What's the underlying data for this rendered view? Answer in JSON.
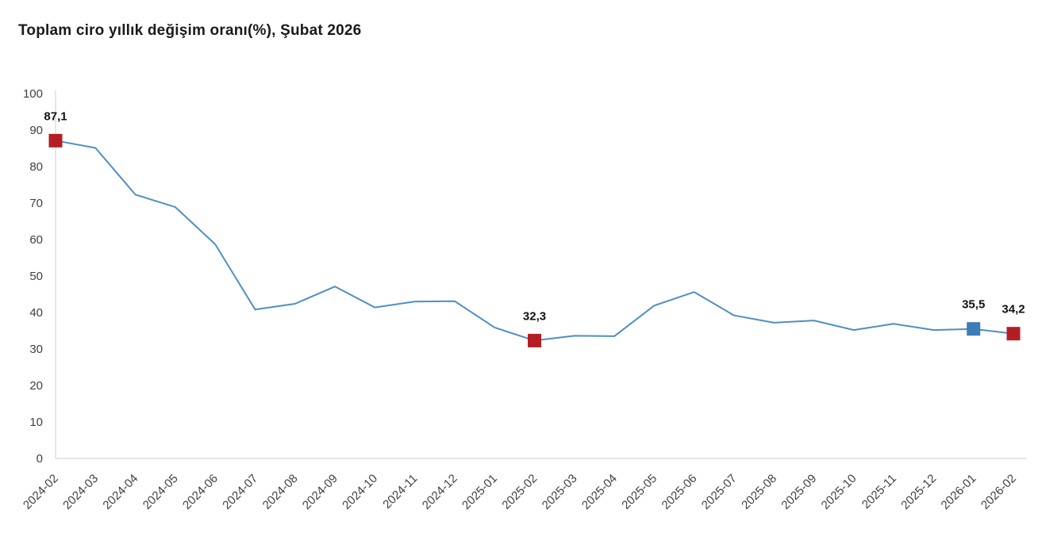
{
  "title": "Toplam ciro yıllık değişim oranı(%), Şubat 2026",
  "chart_data": {
    "type": "line",
    "title": "Toplam ciro yıllık değişim oranı(%), Şubat 2026",
    "categories": [
      "2024-02",
      "2024-03",
      "2024-04",
      "2024-05",
      "2024-06",
      "2024-07",
      "2024-08",
      "2024-09",
      "2024-10",
      "2024-11",
      "2024-12",
      "2025-01",
      "2025-02",
      "2025-03",
      "2025-04",
      "2025-05",
      "2025-06",
      "2025-07",
      "2025-08",
      "2025-09",
      "2025-10",
      "2025-11",
      "2025-12",
      "2026-01",
      "2026-02"
    ],
    "series": [
      {
        "name": "Toplam ciro yıllık değişim oranı (%)",
        "values": [
          87.1,
          85.1,
          72.3,
          68.9,
          58.7,
          40.8,
          42.4,
          47.1,
          41.4,
          43.0,
          43.1,
          35.9,
          32.3,
          33.6,
          33.5,
          41.9,
          45.6,
          39.2,
          37.2,
          37.8,
          35.2,
          36.9,
          35.2,
          35.5,
          34.2
        ]
      }
    ],
    "xlabel": "",
    "ylabel": "",
    "ylim": [
      0,
      100
    ],
    "ytick_step": 10,
    "grid": false,
    "legend_position": "none",
    "x_label_rotation": -45,
    "line_color": "#4e8fc2",
    "axis_color": "#cccccc",
    "tick_label_color": "#404040",
    "highlighted_points": [
      {
        "category": "2024-02",
        "value": 87.1,
        "label": "87,1",
        "color": "#b21e24",
        "marker": "square"
      },
      {
        "category": "2025-02",
        "value": 32.3,
        "label": "32,3",
        "color": "#b21e24",
        "marker": "square"
      },
      {
        "category": "2026-01",
        "value": 35.5,
        "label": "35,5",
        "color": "#3b7db5",
        "marker": "square"
      },
      {
        "category": "2026-02",
        "value": 34.2,
        "label": "34,2",
        "color": "#b21e24",
        "marker": "square"
      }
    ]
  }
}
